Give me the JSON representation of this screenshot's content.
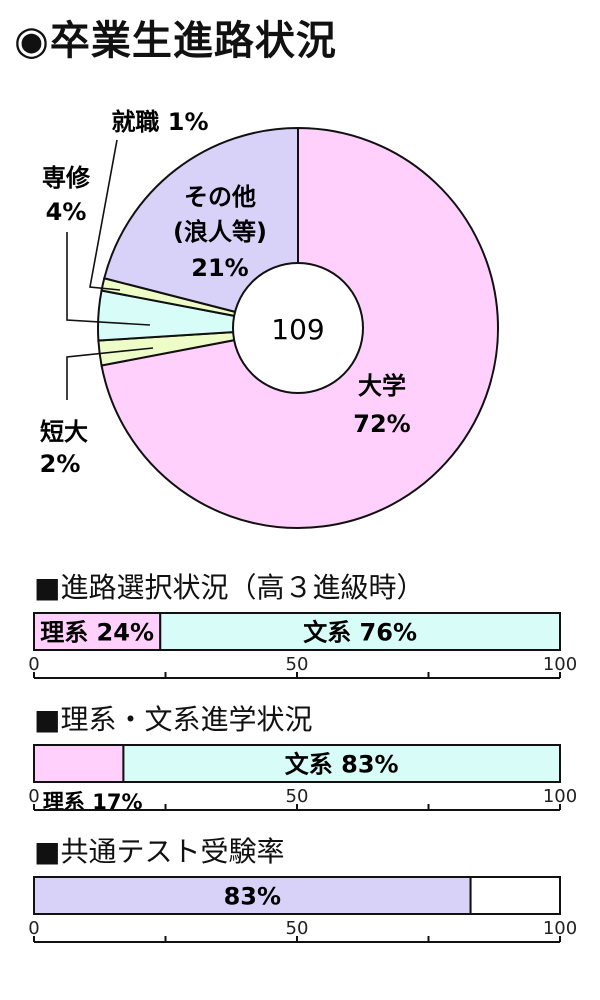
{
  "title": "◉卒業生進路状況",
  "colors": {
    "pink": "#ffd0fb",
    "cyan": "#d8fdf8",
    "lavender": "#d8d2f8",
    "yellowgreen": "#eefcc8",
    "outline": "#111111"
  },
  "chart_data": [
    {
      "type": "pie",
      "variant": "donut",
      "center_label": "109",
      "start": "top, clockwise",
      "slices": [
        {
          "name": "大学",
          "value": 72,
          "label": "72%",
          "color": "#ffd0fb"
        },
        {
          "name": "短大",
          "value": 2,
          "label": "2%",
          "color": "#eefcc8"
        },
        {
          "name": "専修",
          "value": 4,
          "label": "4%",
          "color": "#d8fdf8"
        },
        {
          "name": "就職",
          "value": 1,
          "label": "1%",
          "color": "#eefcc8"
        },
        {
          "name": "その他\n(浪人等)",
          "line1": "その他",
          "line2": "(浪人等)",
          "value": 21,
          "label": "21%",
          "color": "#d8d2f8"
        }
      ]
    },
    {
      "type": "bar",
      "orientation": "horizontal",
      "stacked": true,
      "title": "■進路選択状況（高３進級時）",
      "xlim": [
        0,
        100
      ],
      "ticks": [
        0,
        25,
        50,
        75,
        100
      ],
      "tick_labels": [
        "0",
        "50",
        "100"
      ],
      "segments": [
        {
          "name": "理系",
          "value": 24,
          "label": "理系 24%",
          "color": "#ffd0fb"
        },
        {
          "name": "文系",
          "value": 76,
          "label": "文系 76%",
          "color": "#d8fdf8"
        }
      ]
    },
    {
      "type": "bar",
      "orientation": "horizontal",
      "stacked": true,
      "title": "■理系・文系進学状況",
      "xlim": [
        0,
        100
      ],
      "ticks": [
        0,
        25,
        50,
        75,
        100
      ],
      "tick_labels": [
        "0",
        "50",
        "100"
      ],
      "segments": [
        {
          "name": "理系",
          "value": 17,
          "label": "理系 17%",
          "color": "#ffd0fb",
          "label_below": true
        },
        {
          "name": "文系",
          "value": 83,
          "label": "文系 83%",
          "color": "#d8fdf8"
        }
      ]
    },
    {
      "type": "bar",
      "orientation": "horizontal",
      "stacked": true,
      "title": "■共通テスト受験率",
      "xlim": [
        0,
        100
      ],
      "ticks": [
        0,
        25,
        50,
        75,
        100
      ],
      "tick_labels": [
        "0",
        "50",
        "100"
      ],
      "segments": [
        {
          "name": "受験",
          "value": 83,
          "label": "83%",
          "color": "#d8d2f8"
        },
        {
          "name": "",
          "value": 17,
          "label": "",
          "color": "#ffffff"
        }
      ]
    }
  ]
}
